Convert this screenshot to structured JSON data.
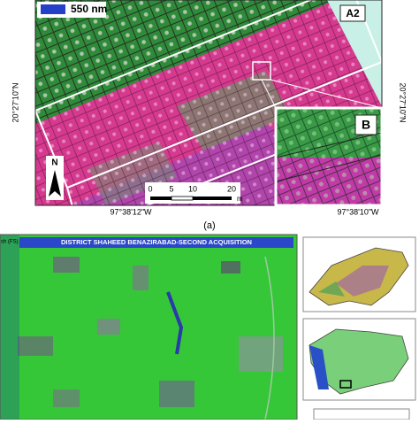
{
  "panel_a": {
    "band_label": "550 nm",
    "region_label": "A2",
    "lat_left": "20°27'10\"N",
    "lat_right": "20°27'10\"N",
    "inset_label": "B",
    "north_label": "N",
    "scale_bar": {
      "labels": [
        "0",
        "5",
        "10",
        "20"
      ],
      "unit": "m"
    },
    "lon_left": "97°38'12\"W",
    "lon_right": "97°38'10\"W",
    "caption": "(a)"
  },
  "panel_b": {
    "title": "DISTRICT SHAHEED BENAZIRABAD-SECOND ACQUISITION",
    "side_label": "sh (FS)"
  }
}
